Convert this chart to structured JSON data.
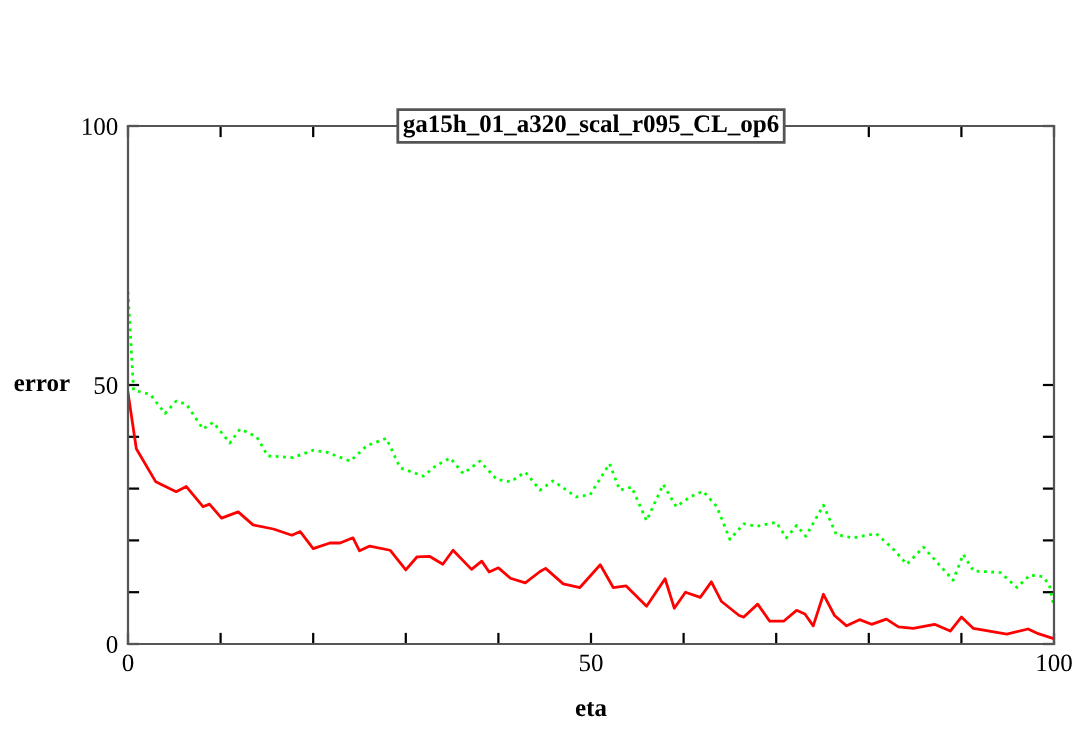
{
  "chart_data": {
    "type": "line",
    "title": "ga15h_01_a320_scal_r095_CL_op6",
    "xlabel": "eta",
    "ylabel": "error",
    "xlim": [
      0,
      100
    ],
    "ylim": [
      0,
      100
    ],
    "xticks": [
      0,
      {
        "value": 10,
        "label": null
      },
      {
        "value": 20,
        "label": null
      },
      {
        "value": 30,
        "label": null
      },
      {
        "value": 40,
        "label": null
      },
      50,
      {
        "value": 60,
        "label": null
      },
      {
        "value": 70,
        "label": null
      },
      {
        "value": 80,
        "label": null
      },
      {
        "value": 90,
        "label": null
      },
      100
    ],
    "yticks": [
      0,
      {
        "value": 10,
        "label": null
      },
      {
        "value": 20,
        "label": null
      },
      {
        "value": 30,
        "label": null
      },
      {
        "value": 40,
        "label": null
      },
      50,
      100
    ],
    "grid": false,
    "series": [
      {
        "color": "#ff0000",
        "line_style": "solid",
        "x": [
          0,
          0.9,
          3,
          5.2,
          6.3,
          8.1,
          8.8,
          10.1,
          11.9,
          13.5,
          15.7,
          17.7,
          18.6,
          20,
          21.8,
          22.9,
          24.3,
          25,
          26.1,
          28.3,
          30,
          31.2,
          32.6,
          34,
          35.1,
          37.1,
          38.2,
          39,
          40,
          41.3,
          42.9,
          44.5,
          45.1,
          47,
          48.8,
          51,
          52.4,
          53.8,
          56,
          58,
          59,
          60.2,
          61.8,
          63,
          64.1,
          66,
          66.5,
          68,
          69.3,
          70.8,
          72.2,
          73.1,
          74,
          75.1,
          76.3,
          77.6,
          79,
          80.3,
          81.9,
          83.2,
          84.8,
          87.1,
          88.8,
          90,
          91.3,
          92.7,
          94.9,
          97.2,
          98.3,
          100
        ],
        "values": [
          48.5,
          37.7,
          31.3,
          29.4,
          30.4,
          26.5,
          27,
          24.3,
          25.5,
          23,
          22.2,
          21,
          21.7,
          18.4,
          19.5,
          19.5,
          20.5,
          18,
          18.9,
          18.1,
          14.3,
          16.8,
          16.9,
          15.4,
          18.1,
          14.4,
          16,
          13.9,
          14.7,
          12.7,
          11.8,
          14,
          14.6,
          11.6,
          10.9,
          15.3,
          10.9,
          11.2,
          7.3,
          12.6,
          6.9,
          10,
          9,
          12,
          8.2,
          5.5,
          5.2,
          7.7,
          4.4,
          4.4,
          6.5,
          5.8,
          3.5,
          9.6,
          5.5,
          3.5,
          4.7,
          3.8,
          4.8,
          3.3,
          3,
          3.8,
          2.5,
          5.2,
          3,
          2.6,
          1.9,
          2.9,
          2,
          1
        ]
      },
      {
        "color": "#00ff00",
        "line_style": "dotted",
        "x": [
          0,
          0.6,
          2.4,
          4,
          5.2,
          6.3,
          8.1,
          9.2,
          11,
          12.1,
          13.9,
          15.1,
          17.8,
          20,
          21.5,
          24,
          25.8,
          27.9,
          29.4,
          31.9,
          33.3,
          34.8,
          36.2,
          38,
          39.8,
          41.3,
          42.9,
          44.5,
          45.9,
          48.4,
          49.9,
          52,
          53.1,
          54.4,
          56,
          57.8,
          59.2,
          60.7,
          62.1,
          63.6,
          65,
          66.5,
          67.9,
          70,
          71.1,
          72.2,
          73.2,
          75.1,
          76.5,
          78.3,
          80.8,
          82.6,
          84.1,
          85.9,
          87.4,
          89.1,
          90.2,
          91.3,
          94.2,
          96,
          97.4,
          98.8,
          99.5,
          100
        ],
        "values": [
          68,
          49,
          48.2,
          44.5,
          46.9,
          46.3,
          41.5,
          42.8,
          38.8,
          41.5,
          40,
          36.3,
          36,
          37.4,
          37,
          35.3,
          38.3,
          39.7,
          34,
          32.4,
          34.5,
          35.9,
          32.9,
          35.3,
          31.8,
          31.3,
          33.2,
          29.7,
          31.5,
          28.4,
          28.8,
          34.8,
          29.7,
          30.3,
          23.8,
          30.8,
          26.5,
          28.4,
          29.5,
          26.5,
          20.2,
          23.2,
          22.7,
          23.5,
          20.5,
          22.9,
          20.8,
          26.8,
          21.1,
          20.5,
          21.3,
          18.4,
          15.4,
          18.7,
          15.7,
          12.3,
          17.3,
          14.1,
          13.8,
          10.9,
          13.3,
          13,
          11.4,
          7.1
        ]
      }
    ]
  }
}
